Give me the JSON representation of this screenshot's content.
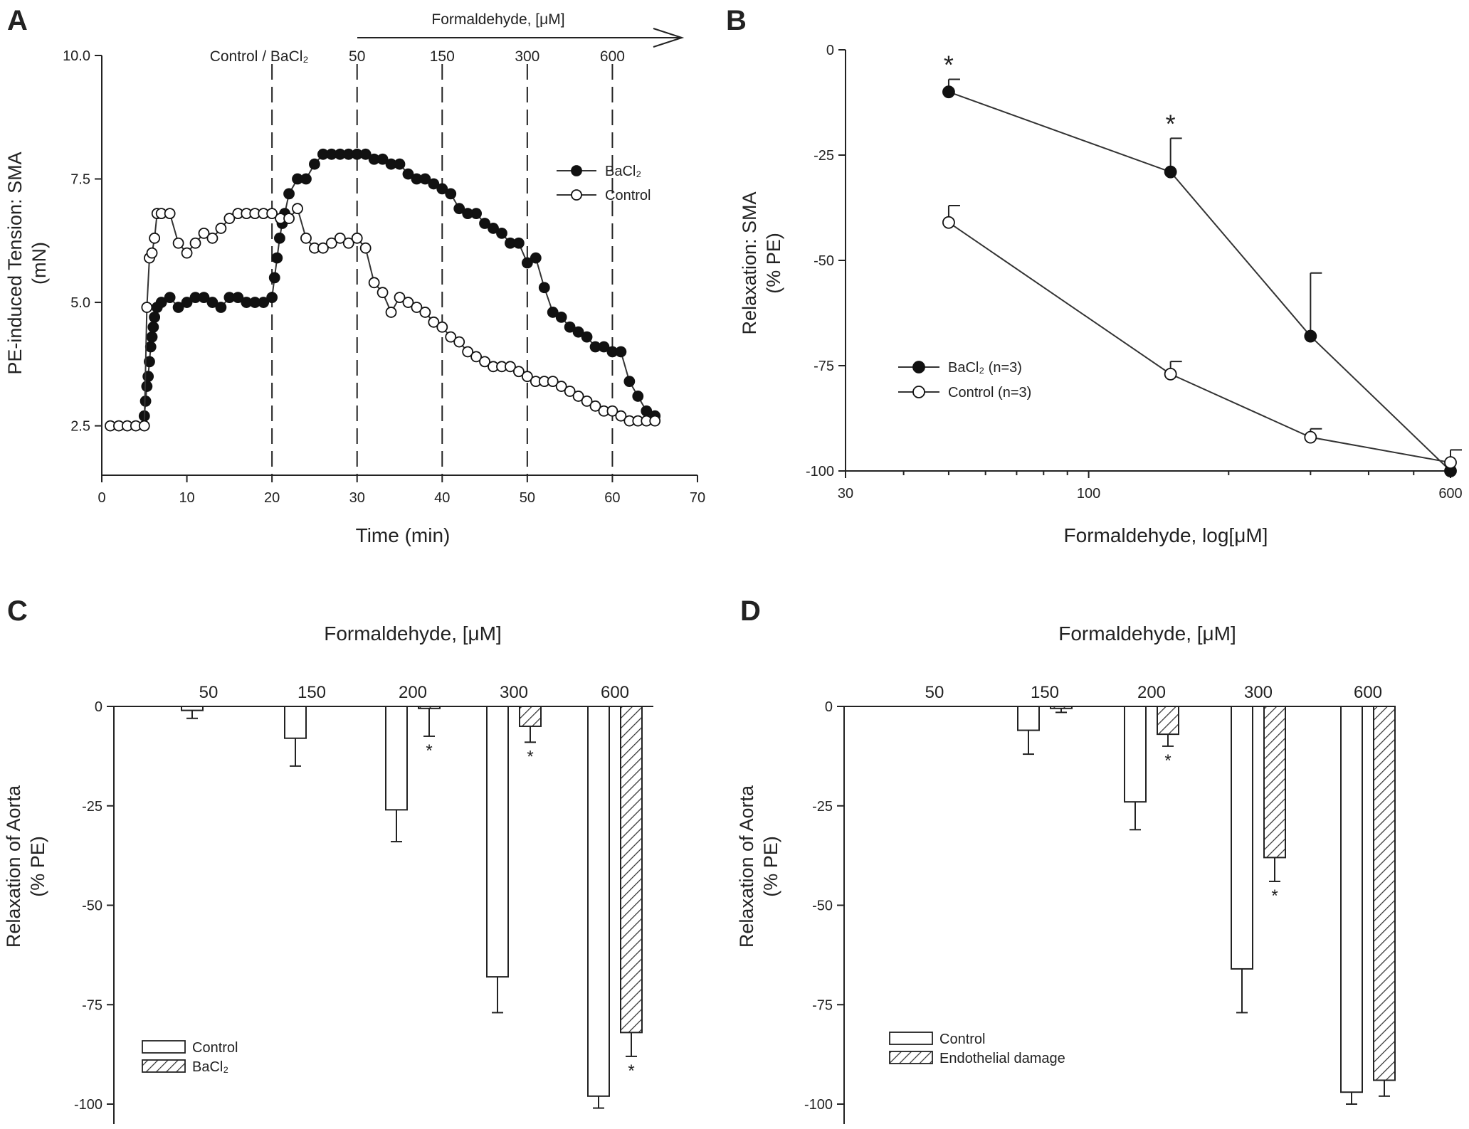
{
  "chart_data": [
    {
      "panel": "A",
      "type": "line",
      "ylabel_line1": "PE-induced Tension: SMA",
      "ylabel_line2": "(mN)",
      "xlabel": "Time (min)",
      "xlim": [
        0,
        70
      ],
      "ylim": [
        1.5,
        10.0
      ],
      "xticks": [
        0,
        10,
        20,
        30,
        40,
        50,
        60,
        70
      ],
      "yticks": [
        2.5,
        5.0,
        7.5,
        10.0
      ],
      "ytick_labels": [
        "2.5",
        "5.0",
        "7.5",
        "10.0"
      ],
      "top_arrow_label": "Formaldehyde, [μM]",
      "vlines": [
        {
          "x": 20,
          "label": "Control / BaCl₂"
        },
        {
          "x": 30,
          "label": "50"
        },
        {
          "x": 40,
          "label": "150"
        },
        {
          "x": 50,
          "label": "300"
        },
        {
          "x": 60,
          "label": "600"
        }
      ],
      "legend": [
        "BaCl₂",
        "Control"
      ],
      "series": [
        {
          "name": "BaCl₂",
          "marker": "filled",
          "x": [
            5,
            5.15,
            5.3,
            5.45,
            5.6,
            5.75,
            5.9,
            6.05,
            6.2,
            6.5,
            7,
            8,
            9,
            10,
            11,
            12,
            13,
            14,
            15,
            16,
            17,
            18,
            19,
            20,
            20.3,
            20.6,
            20.9,
            21.2,
            21.5,
            22,
            23,
            24,
            25,
            26,
            27,
            28,
            29,
            30,
            31,
            32,
            33,
            34,
            35,
            36,
            37,
            38,
            39,
            40,
            41,
            42,
            43,
            44,
            45,
            46,
            47,
            48,
            49,
            50,
            51,
            52,
            53,
            54,
            55,
            56,
            57,
            58,
            59,
            60,
            61,
            62,
            63,
            64,
            65
          ],
          "y": [
            2.7,
            3.0,
            3.3,
            3.5,
            3.8,
            4.1,
            4.3,
            4.5,
            4.7,
            4.9,
            5.0,
            5.1,
            4.9,
            5.0,
            5.1,
            5.1,
            5.0,
            4.9,
            5.1,
            5.1,
            5.0,
            5.0,
            5.0,
            5.1,
            5.5,
            5.9,
            6.3,
            6.6,
            6.8,
            7.2,
            7.5,
            7.5,
            7.8,
            8.0,
            8.0,
            8.0,
            8.0,
            8.0,
            8.0,
            7.9,
            7.9,
            7.8,
            7.8,
            7.6,
            7.5,
            7.5,
            7.4,
            7.3,
            7.2,
            6.9,
            6.8,
            6.8,
            6.6,
            6.5,
            6.4,
            6.2,
            6.2,
            5.8,
            5.9,
            5.3,
            4.8,
            4.7,
            4.5,
            4.4,
            4.3,
            4.1,
            4.1,
            4.0,
            4.0,
            3.4,
            3.1,
            2.8,
            2.7
          ]
        },
        {
          "name": "Control",
          "marker": "open",
          "x": [
            1,
            2,
            3,
            4,
            5,
            5.3,
            5.6,
            5.9,
            6.2,
            6.5,
            7,
            8,
            9,
            10,
            11,
            12,
            13,
            14,
            15,
            16,
            17,
            18,
            19,
            20,
            21,
            22,
            23,
            24,
            25,
            26,
            27,
            28,
            29,
            30,
            31,
            32,
            33,
            34,
            35,
            36,
            37,
            38,
            39,
            40,
            41,
            42,
            43,
            44,
            45,
            46,
            47,
            48,
            49,
            50,
            51,
            52,
            53,
            54,
            55,
            56,
            57,
            58,
            59,
            60,
            61,
            62,
            63,
            64,
            65
          ],
          "y": [
            2.5,
            2.5,
            2.5,
            2.5,
            2.5,
            4.9,
            5.9,
            6.0,
            6.3,
            6.8,
            6.8,
            6.8,
            6.2,
            6.0,
            6.2,
            6.4,
            6.3,
            6.5,
            6.7,
            6.8,
            6.8,
            6.8,
            6.8,
            6.8,
            6.7,
            6.7,
            6.9,
            6.3,
            6.1,
            6.1,
            6.2,
            6.3,
            6.2,
            6.3,
            6.1,
            5.4,
            5.2,
            4.8,
            5.1,
            5.0,
            4.9,
            4.8,
            4.6,
            4.5,
            4.3,
            4.2,
            4.0,
            3.9,
            3.8,
            3.7,
            3.7,
            3.7,
            3.6,
            3.5,
            3.4,
            3.4,
            3.4,
            3.3,
            3.2,
            3.1,
            3.0,
            2.9,
            2.8,
            2.8,
            2.7,
            2.6,
            2.6,
            2.6,
            2.6
          ]
        }
      ]
    },
    {
      "panel": "B",
      "type": "line",
      "xscale": "log",
      "ylabel_line1": "Relaxation: SMA",
      "ylabel_line2": "(% PE)",
      "xlabel": "Formaldehyde, log[μM]",
      "xlim": [
        30,
        600
      ],
      "ylim": [
        -100,
        0
      ],
      "xticks": [
        30,
        100,
        600
      ],
      "yticks": [
        0,
        -25,
        -50,
        -75,
        -100
      ],
      "legend": [
        "BaCl₂ (n=3)",
        "Control (n=3)"
      ],
      "series": [
        {
          "name": "BaCl₂ (n=3)",
          "marker": "filled",
          "x": [
            50,
            150,
            300,
            600
          ],
          "y": [
            -10,
            -29,
            -68,
            -100
          ],
          "err": [
            3,
            8,
            15,
            0
          ],
          "sig": [
            true,
            true,
            false,
            false
          ]
        },
        {
          "name": "Control (n=3)",
          "marker": "open",
          "x": [
            50,
            150,
            300,
            600
          ],
          "y": [
            -41,
            -77,
            -92,
            -98
          ],
          "err": [
            4,
            3,
            2,
            3
          ],
          "sig": [
            false,
            false,
            false,
            false
          ]
        }
      ]
    },
    {
      "panel": "C",
      "type": "bar",
      "title": "Formaldehyde, [μM]",
      "ylabel_line1": "Relaxation of Aorta",
      "ylabel_line2": "(% PE)",
      "categories": [
        "50",
        "150",
        "200",
        "300",
        "600"
      ],
      "ylim": [
        -100,
        0
      ],
      "yticks": [
        0,
        -25,
        -50,
        -75,
        -100
      ],
      "legend": [
        "Control",
        "BaCl₂"
      ],
      "series": [
        {
          "name": "Control",
          "pattern": "open",
          "values": [
            -1,
            -8,
            -26,
            -68,
            -98
          ],
          "err": [
            2,
            7,
            8,
            9,
            3
          ],
          "sig": [
            false,
            false,
            false,
            false,
            false
          ]
        },
        {
          "name": "BaCl₂",
          "pattern": "hatch",
          "values": [
            0,
            0,
            -0.5,
            -5,
            -82
          ],
          "err": [
            0,
            0,
            7,
            4,
            6
          ],
          "sig": [
            false,
            false,
            true,
            true,
            true
          ]
        }
      ]
    },
    {
      "panel": "D",
      "type": "bar",
      "title": "Formaldehyde, [μM]",
      "ylabel_line1": "Relaxation of Aorta",
      "ylabel_line2": "(% PE)",
      "categories": [
        "50",
        "150",
        "200",
        "300",
        "600"
      ],
      "ylim": [
        -100,
        0
      ],
      "yticks": [
        0,
        -25,
        -50,
        -75,
        -100
      ],
      "legend": [
        "Control",
        "Endothelial damage"
      ],
      "series": [
        {
          "name": "Control",
          "pattern": "open",
          "values": [
            0,
            -6,
            -24,
            -66,
            -97
          ],
          "err": [
            0,
            6,
            7,
            11,
            3
          ],
          "sig": [
            false,
            false,
            false,
            false,
            false
          ]
        },
        {
          "name": "Endothelial damage",
          "pattern": "hatch",
          "values": [
            0,
            -0.5,
            -7,
            -38,
            -94
          ],
          "err": [
            0,
            1,
            3,
            6,
            4
          ],
          "sig": [
            false,
            false,
            true,
            true,
            false
          ]
        }
      ]
    }
  ],
  "panel_letters": [
    "A",
    "B",
    "C",
    "D"
  ],
  "significance_symbol": "*"
}
